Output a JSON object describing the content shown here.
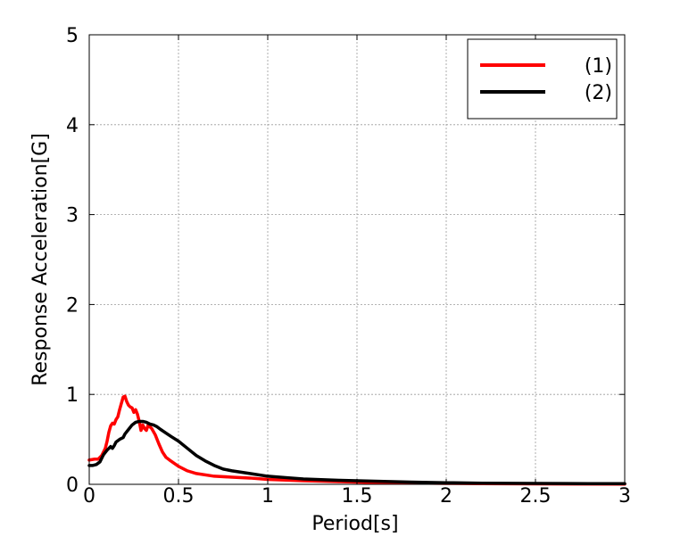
{
  "chart_data": {
    "type": "line",
    "title": "",
    "xlabel": "Period[s]",
    "ylabel": "Response Acceleration[G]",
    "xlim": [
      0,
      3
    ],
    "ylim": [
      0,
      5
    ],
    "xticks": [
      "0",
      "0.5",
      "1",
      "1.5",
      "2",
      "2.5",
      "3"
    ],
    "xtick_values": [
      0,
      0.5,
      1,
      1.5,
      2,
      2.5,
      3
    ],
    "yticks": [
      "0",
      "1",
      "2",
      "3",
      "4",
      "5"
    ],
    "ytick_values": [
      0,
      1,
      2,
      3,
      4,
      5
    ],
    "grid": true,
    "legend_position": "top-right",
    "series": [
      {
        "name": "(1)",
        "color": "#ff0000",
        "points": [
          [
            0,
            0.27
          ],
          [
            0.03,
            0.28
          ],
          [
            0.05,
            0.28
          ],
          [
            0.07,
            0.32
          ],
          [
            0.09,
            0.4
          ],
          [
            0.1,
            0.48
          ],
          [
            0.11,
            0.58
          ],
          [
            0.12,
            0.65
          ],
          [
            0.13,
            0.68
          ],
          [
            0.14,
            0.67
          ],
          [
            0.15,
            0.72
          ],
          [
            0.16,
            0.75
          ],
          [
            0.17,
            0.83
          ],
          [
            0.18,
            0.9
          ],
          [
            0.19,
            0.97
          ],
          [
            0.2,
            0.98
          ],
          [
            0.21,
            0.92
          ],
          [
            0.22,
            0.88
          ],
          [
            0.23,
            0.86
          ],
          [
            0.24,
            0.85
          ],
          [
            0.25,
            0.8
          ],
          [
            0.26,
            0.83
          ],
          [
            0.27,
            0.78
          ],
          [
            0.28,
            0.7
          ],
          [
            0.29,
            0.6
          ],
          [
            0.3,
            0.66
          ],
          [
            0.31,
            0.62
          ],
          [
            0.32,
            0.6
          ],
          [
            0.33,
            0.66
          ],
          [
            0.34,
            0.64
          ],
          [
            0.35,
            0.62
          ],
          [
            0.37,
            0.55
          ],
          [
            0.39,
            0.45
          ],
          [
            0.41,
            0.36
          ],
          [
            0.43,
            0.3
          ],
          [
            0.45,
            0.27
          ],
          [
            0.5,
            0.2
          ],
          [
            0.55,
            0.15
          ],
          [
            0.6,
            0.12
          ],
          [
            0.7,
            0.09
          ],
          [
            0.8,
            0.08
          ],
          [
            0.9,
            0.07
          ],
          [
            1.0,
            0.055
          ],
          [
            1.2,
            0.04
          ],
          [
            1.4,
            0.03
          ],
          [
            1.6,
            0.02
          ],
          [
            1.8,
            0.015
          ],
          [
            2.0,
            0.01
          ],
          [
            2.2,
            0.008
          ],
          [
            2.5,
            0.005
          ],
          [
            3.0,
            0.003
          ]
        ]
      },
      {
        "name": "(2)",
        "color": "#000000",
        "points": [
          [
            0,
            0.21
          ],
          [
            0.02,
            0.21
          ],
          [
            0.04,
            0.22
          ],
          [
            0.06,
            0.25
          ],
          [
            0.08,
            0.33
          ],
          [
            0.1,
            0.38
          ],
          [
            0.12,
            0.42
          ],
          [
            0.13,
            0.4
          ],
          [
            0.14,
            0.43
          ],
          [
            0.15,
            0.47
          ],
          [
            0.17,
            0.5
          ],
          [
            0.19,
            0.52
          ],
          [
            0.2,
            0.56
          ],
          [
            0.22,
            0.61
          ],
          [
            0.24,
            0.66
          ],
          [
            0.26,
            0.69
          ],
          [
            0.28,
            0.7
          ],
          [
            0.3,
            0.7
          ],
          [
            0.32,
            0.69
          ],
          [
            0.34,
            0.67
          ],
          [
            0.36,
            0.66
          ],
          [
            0.38,
            0.64
          ],
          [
            0.4,
            0.61
          ],
          [
            0.43,
            0.57
          ],
          [
            0.46,
            0.53
          ],
          [
            0.5,
            0.48
          ],
          [
            0.55,
            0.4
          ],
          [
            0.6,
            0.32
          ],
          [
            0.65,
            0.26
          ],
          [
            0.7,
            0.21
          ],
          [
            0.75,
            0.17
          ],
          [
            0.8,
            0.15
          ],
          [
            0.9,
            0.12
          ],
          [
            1.0,
            0.09
          ],
          [
            1.1,
            0.075
          ],
          [
            1.2,
            0.06
          ],
          [
            1.4,
            0.045
          ],
          [
            1.6,
            0.035
          ],
          [
            1.8,
            0.025
          ],
          [
            2.0,
            0.018
          ],
          [
            2.2,
            0.013
          ],
          [
            2.5,
            0.01
          ],
          [
            2.8,
            0.008
          ],
          [
            3.0,
            0.007
          ]
        ]
      }
    ]
  }
}
